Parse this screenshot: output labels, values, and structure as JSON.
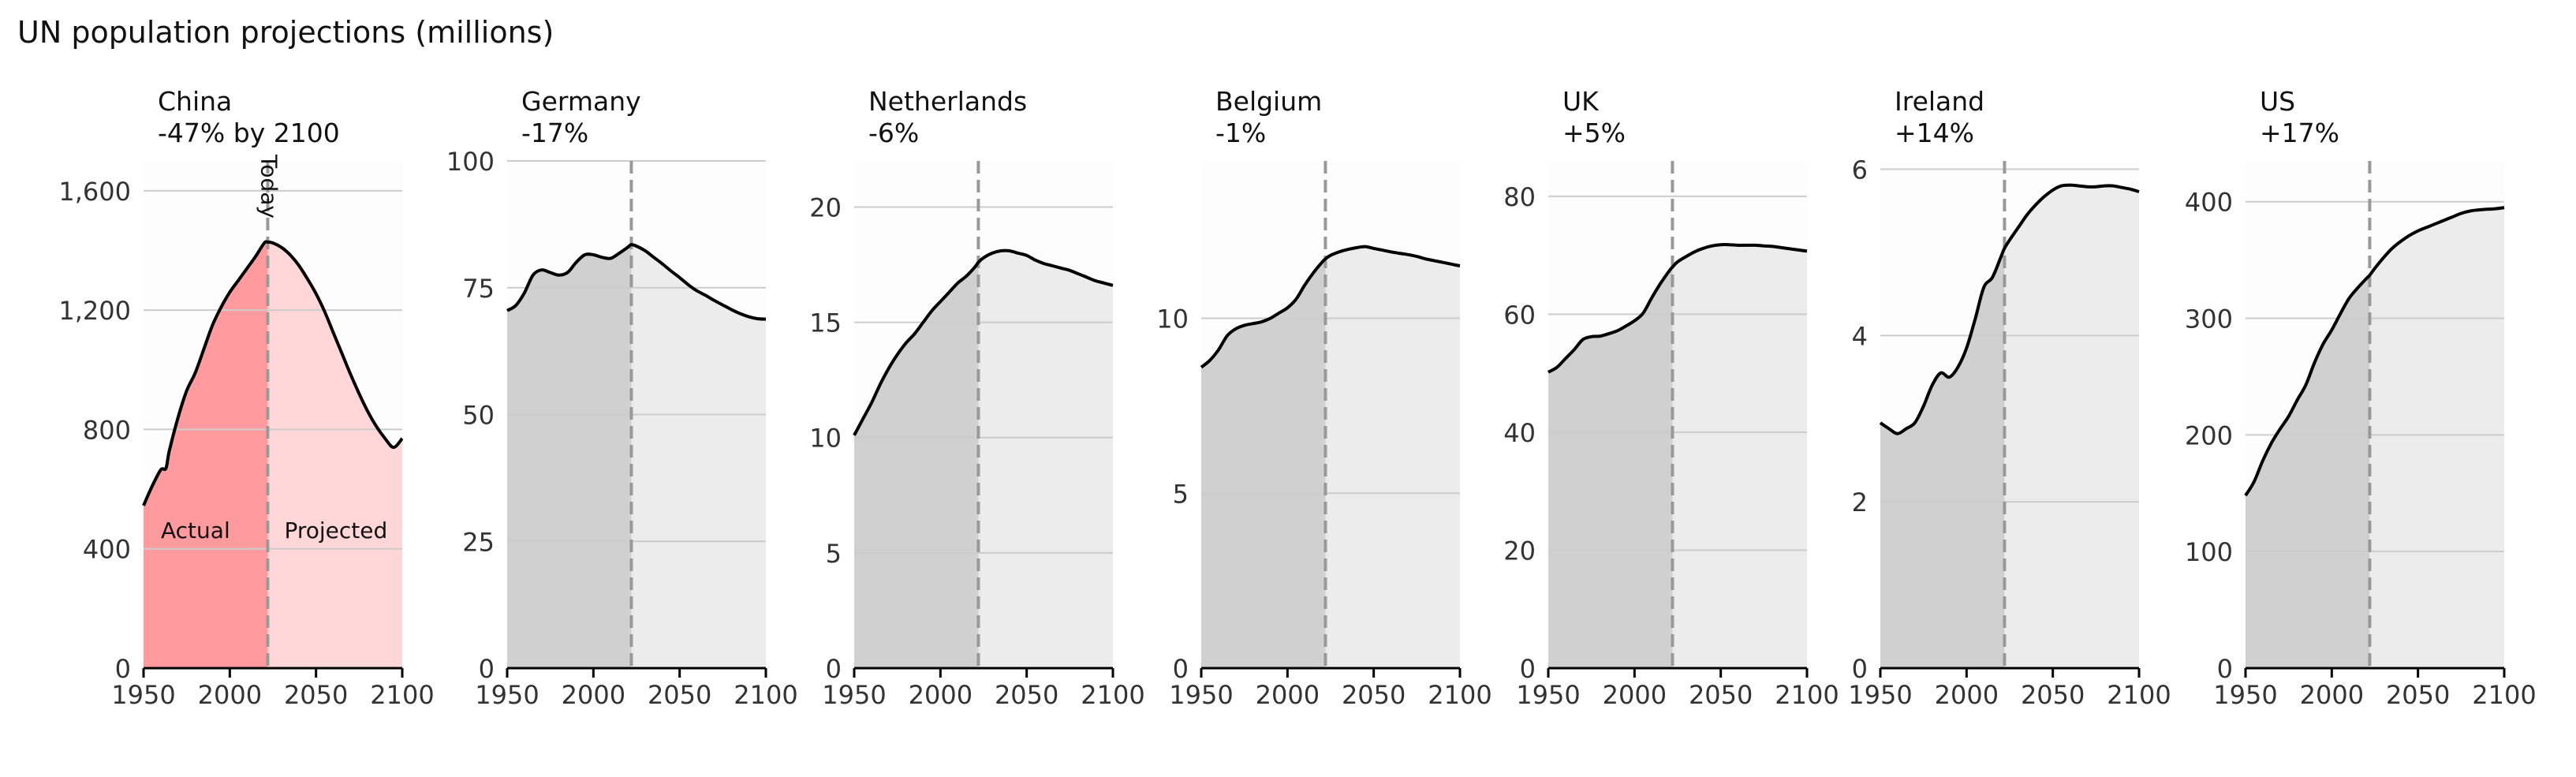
{
  "title": "UN population projections (millions)",
  "colors": {
    "highlight_actual": "#ff9a9f",
    "highlight_projected": "#ffd7d8",
    "actual": "#d0d0d0",
    "projected": "#ececec",
    "panel_bg": "#fdfdfd",
    "line": "#000000",
    "divider": "#999999",
    "grid": "#cccccc"
  },
  "chart_data": [
    {
      "type": "area",
      "country": "China",
      "change": "-47% by 2100",
      "xlim": [
        1950,
        2100
      ],
      "xticks": [
        "1950",
        "2000",
        "2050",
        "2100"
      ],
      "ylim": [
        0,
        1700
      ],
      "yticks": [
        0,
        400,
        800,
        1200,
        1600
      ],
      "ytick_labels": [
        "0",
        "400",
        "800",
        "1,200",
        "1,600"
      ],
      "divider_x": 2022,
      "divider_label": "Today",
      "region_labels": {
        "actual": "Actual",
        "projected": "Projected"
      },
      "x": [
        1950,
        1955,
        1960,
        1963,
        1965,
        1970,
        1975,
        1980,
        1985,
        1990,
        1995,
        2000,
        2005,
        2010,
        2015,
        2020,
        2022,
        2025,
        2030,
        2035,
        2040,
        2045,
        2050,
        2055,
        2060,
        2065,
        2070,
        2075,
        2080,
        2085,
        2090,
        2095,
        2100
      ],
      "y": [
        545,
        610,
        665,
        670,
        730,
        840,
        930,
        990,
        1070,
        1150,
        1210,
        1260,
        1300,
        1340,
        1380,
        1425,
        1428,
        1425,
        1410,
        1385,
        1350,
        1305,
        1255,
        1195,
        1125,
        1055,
        985,
        920,
        860,
        810,
        770,
        740,
        770
      ]
    },
    {
      "type": "area",
      "country": "Germany",
      "change": "-17%",
      "xlim": [
        1950,
        2100
      ],
      "xticks": [
        "1950",
        "2000",
        "2050",
        "2100"
      ],
      "ylim": [
        0,
        100
      ],
      "yticks": [
        0,
        25,
        50,
        75,
        100
      ],
      "ytick_labels": [
        "0",
        "25",
        "50",
        "75",
        "100"
      ],
      "divider_x": 2022,
      "x": [
        1950,
        1955,
        1960,
        1965,
        1970,
        1975,
        1980,
        1985,
        1990,
        1995,
        2000,
        2005,
        2010,
        2015,
        2020,
        2022,
        2025,
        2030,
        2035,
        2040,
        2045,
        2050,
        2055,
        2060,
        2065,
        2070,
        2075,
        2080,
        2085,
        2090,
        2095,
        2100
      ],
      "y": [
        70.5,
        71.5,
        74,
        77.5,
        78.5,
        78,
        77.5,
        78,
        80,
        81.5,
        81.5,
        81,
        80.8,
        81.8,
        83,
        83.5,
        83.2,
        82.3,
        81,
        79.7,
        78.3,
        77,
        75.6,
        74.4,
        73.5,
        72.5,
        71.6,
        70.7,
        69.9,
        69.3,
        68.9,
        68.8
      ]
    },
    {
      "type": "area",
      "country": "Netherlands",
      "change": "-6%",
      "xlim": [
        1950,
        2100
      ],
      "xticks": [
        "1950",
        "2000",
        "2050",
        "2100"
      ],
      "ylim": [
        0,
        22
      ],
      "yticks": [
        0,
        5,
        10,
        15,
        20
      ],
      "ytick_labels": [
        "0",
        "5",
        "10",
        "15",
        "20"
      ],
      "divider_x": 2022,
      "x": [
        1950,
        1955,
        1960,
        1965,
        1970,
        1975,
        1980,
        1985,
        1990,
        1995,
        2000,
        2005,
        2010,
        2015,
        2020,
        2022,
        2025,
        2030,
        2035,
        2040,
        2045,
        2050,
        2055,
        2060,
        2065,
        2070,
        2075,
        2080,
        2085,
        2090,
        2095,
        2100
      ],
      "y": [
        10.1,
        10.8,
        11.5,
        12.3,
        13.0,
        13.6,
        14.1,
        14.5,
        15.0,
        15.5,
        15.9,
        16.3,
        16.7,
        17.0,
        17.4,
        17.6,
        17.8,
        18.0,
        18.1,
        18.1,
        18.0,
        17.9,
        17.7,
        17.55,
        17.45,
        17.35,
        17.25,
        17.1,
        16.95,
        16.8,
        16.7,
        16.6
      ]
    },
    {
      "type": "area",
      "country": "Belgium",
      "change": "-1%",
      "xlim": [
        1950,
        2100
      ],
      "xticks": [
        "1950",
        "2000",
        "2050",
        "2100"
      ],
      "ylim": [
        0,
        14.5
      ],
      "yticks": [
        0,
        5,
        10
      ],
      "ytick_labels": [
        "0",
        "5",
        "10"
      ],
      "divider_x": 2022,
      "x": [
        1950,
        1955,
        1960,
        1965,
        1970,
        1975,
        1980,
        1985,
        1990,
        1995,
        2000,
        2005,
        2010,
        2015,
        2020,
        2022,
        2025,
        2030,
        2035,
        2040,
        2045,
        2050,
        2055,
        2060,
        2065,
        2070,
        2075,
        2080,
        2085,
        2090,
        2095,
        2100
      ],
      "y": [
        8.6,
        8.8,
        9.1,
        9.5,
        9.7,
        9.8,
        9.85,
        9.9,
        10.0,
        10.15,
        10.3,
        10.55,
        10.95,
        11.3,
        11.6,
        11.7,
        11.8,
        11.9,
        11.97,
        12.02,
        12.05,
        12.0,
        11.95,
        11.9,
        11.86,
        11.82,
        11.77,
        11.7,
        11.65,
        11.6,
        11.55,
        11.5
      ]
    },
    {
      "type": "area",
      "country": "UK",
      "change": "+5%",
      "xlim": [
        1950,
        2100
      ],
      "xticks": [
        "1950",
        "2000",
        "2050",
        "2100"
      ],
      "ylim": [
        0,
        86
      ],
      "yticks": [
        0,
        20,
        40,
        60,
        80
      ],
      "ytick_labels": [
        "0",
        "20",
        "40",
        "60",
        "80"
      ],
      "divider_x": 2022,
      "x": [
        1950,
        1955,
        1960,
        1965,
        1970,
        1975,
        1980,
        1985,
        1990,
        1995,
        2000,
        2005,
        2010,
        2015,
        2020,
        2022,
        2025,
        2030,
        2035,
        2040,
        2045,
        2050,
        2055,
        2060,
        2065,
        2070,
        2075,
        2080,
        2085,
        2090,
        2095,
        2100
      ],
      "y": [
        50.2,
        51,
        52.5,
        54,
        55.7,
        56.2,
        56.3,
        56.7,
        57.2,
        58,
        58.9,
        60.2,
        62.8,
        65.2,
        67.3,
        68,
        68.9,
        69.8,
        70.6,
        71.2,
        71.6,
        71.8,
        71.8,
        71.7,
        71.7,
        71.7,
        71.6,
        71.5,
        71.3,
        71.1,
        70.9,
        70.7
      ]
    },
    {
      "type": "area",
      "country": "Ireland",
      "change": "+14%",
      "xlim": [
        1950,
        2100
      ],
      "xticks": [
        "1950",
        "2000",
        "2050",
        "2100"
      ],
      "ylim": [
        0,
        6.1
      ],
      "yticks": [
        0,
        2,
        4,
        6
      ],
      "ytick_labels": [
        "0",
        "2",
        "4",
        "6"
      ],
      "divider_x": 2022,
      "x": [
        1950,
        1955,
        1960,
        1965,
        1970,
        1975,
        1980,
        1985,
        1990,
        1995,
        2000,
        2005,
        2010,
        2015,
        2020,
        2022,
        2025,
        2030,
        2035,
        2040,
        2045,
        2050,
        2055,
        2060,
        2065,
        2070,
        2075,
        2080,
        2085,
        2090,
        2095,
        2100
      ],
      "y": [
        2.95,
        2.88,
        2.82,
        2.88,
        2.95,
        3.15,
        3.4,
        3.55,
        3.5,
        3.62,
        3.85,
        4.2,
        4.58,
        4.7,
        4.95,
        5.05,
        5.15,
        5.3,
        5.45,
        5.57,
        5.67,
        5.75,
        5.8,
        5.81,
        5.8,
        5.79,
        5.79,
        5.8,
        5.8,
        5.78,
        5.76,
        5.73
      ]
    },
    {
      "type": "area",
      "country": "US",
      "change": "+17%",
      "xlim": [
        1950,
        2100
      ],
      "xticks": [
        "1950",
        "2000",
        "2050",
        "2100"
      ],
      "ylim": [
        0,
        435
      ],
      "yticks": [
        0,
        100,
        200,
        300,
        400
      ],
      "ytick_labels": [
        "0",
        "100",
        "200",
        "300",
        "400"
      ],
      "divider_x": 2022,
      "x": [
        1950,
        1955,
        1960,
        1965,
        1970,
        1975,
        1980,
        1985,
        1990,
        1995,
        2000,
        2005,
        2010,
        2015,
        2020,
        2022,
        2025,
        2030,
        2035,
        2040,
        2045,
        2050,
        2055,
        2060,
        2065,
        2070,
        2075,
        2080,
        2085,
        2090,
        2095,
        2100
      ],
      "y": [
        148,
        160,
        178,
        193,
        205,
        216,
        230,
        243,
        262,
        278,
        290,
        304,
        317,
        326,
        334,
        337,
        343,
        352,
        360,
        366,
        371,
        375,
        378,
        381,
        384,
        387,
        390,
        392,
        393,
        393.5,
        394,
        395
      ]
    }
  ]
}
